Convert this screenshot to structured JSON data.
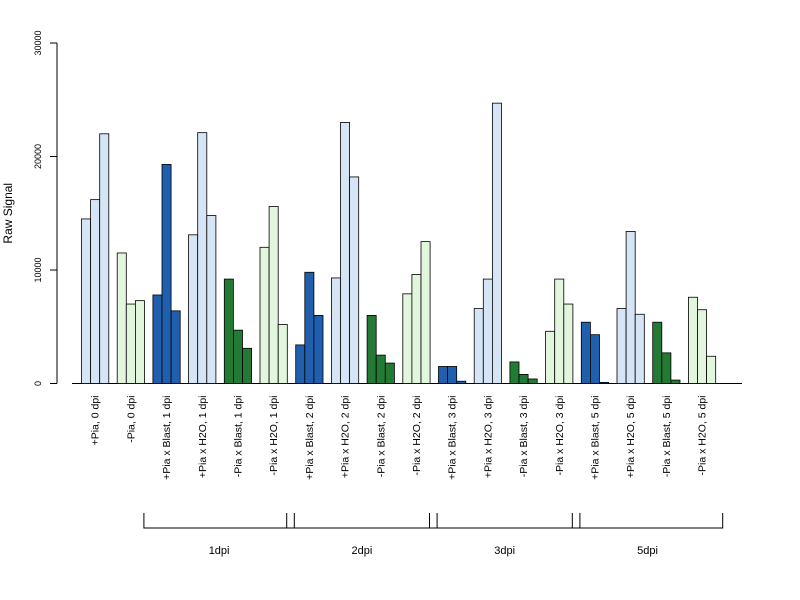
{
  "chart_data": {
    "type": "bar",
    "ylabel": "Raw Signal",
    "xlabel": "",
    "ylim": [
      0,
      30000
    ],
    "yticks": [
      0,
      10000,
      20000,
      30000
    ],
    "grid": false,
    "legend": "none",
    "colors": {
      "plus_pia_blast": "#1f5fad",
      "plus_pia": "#d6e5f6",
      "minus_pia_blast": "#227a34",
      "minus_pia": "#e2f5dd"
    },
    "groups": [
      {
        "label": "+Pia, 0 dpi",
        "color_key": "plus_pia",
        "values": [
          14500,
          16200,
          22000
        ]
      },
      {
        "label": "-Pia, 0 dpi",
        "color_key": "minus_pia",
        "values": [
          11500,
          7000,
          7300
        ]
      },
      {
        "label": "+Pia x Blast, 1 dpi",
        "color_key": "plus_pia_blast",
        "values": [
          7800,
          19300,
          6400
        ]
      },
      {
        "label": "+Pia x H2O, 1 dpi",
        "color_key": "plus_pia",
        "values": [
          13100,
          22100,
          14800
        ]
      },
      {
        "label": "-Pia x Blast, 1 dpi",
        "color_key": "minus_pia_blast",
        "values": [
          9200,
          4700,
          3100
        ]
      },
      {
        "label": "-Pia x H2O, 1 dpi",
        "color_key": "minus_pia",
        "values": [
          12000,
          15600,
          5200
        ]
      },
      {
        "label": "+Pia x Blast, 2 dpi",
        "color_key": "plus_pia_blast",
        "values": [
          3400,
          9800,
          6000
        ]
      },
      {
        "label": "+Pia x H2O, 2 dpi",
        "color_key": "plus_pia",
        "values": [
          9300,
          23000,
          18200
        ]
      },
      {
        "label": "-Pia x Blast, 2 dpi",
        "color_key": "minus_pia_blast",
        "values": [
          6000,
          2500,
          1800
        ]
      },
      {
        "label": "-Pia x H2O, 2 dpi",
        "color_key": "minus_pia",
        "values": [
          7900,
          9600,
          12500
        ]
      },
      {
        "label": "+Pia x Blast, 3 dpi",
        "color_key": "plus_pia_blast",
        "values": [
          1500,
          1500,
          200
        ]
      },
      {
        "label": "+Pia x H2O, 3 dpi",
        "color_key": "plus_pia",
        "values": [
          6600,
          9200,
          24700
        ]
      },
      {
        "label": "-Pia x Blast, 3 dpi",
        "color_key": "minus_pia_blast",
        "values": [
          1900,
          800,
          400
        ]
      },
      {
        "label": "-Pia x H2O, 3 dpi",
        "color_key": "minus_pia",
        "values": [
          4600,
          9200,
          7000
        ]
      },
      {
        "label": "+Pia x Blast, 5 dpi",
        "color_key": "plus_pia_blast",
        "values": [
          5400,
          4300,
          100
        ]
      },
      {
        "label": "+Pia x H2O, 5 dpi",
        "color_key": "plus_pia",
        "values": [
          6600,
          13400,
          6100
        ]
      },
      {
        "label": "-Pia x Blast, 5 dpi",
        "color_key": "minus_pia_blast",
        "values": [
          5400,
          2700,
          300
        ]
      },
      {
        "label": "-Pia x H2O, 5 dpi",
        "color_key": "minus_pia",
        "values": [
          7600,
          6500,
          2400
        ]
      }
    ],
    "brackets": [
      {
        "label": "1dpi",
        "from_group": 2,
        "to_group": 5
      },
      {
        "label": "2dpi",
        "from_group": 6,
        "to_group": 9
      },
      {
        "label": "3dpi",
        "from_group": 10,
        "to_group": 13
      },
      {
        "label": "5dpi",
        "from_group": 14,
        "to_group": 17
      }
    ]
  }
}
